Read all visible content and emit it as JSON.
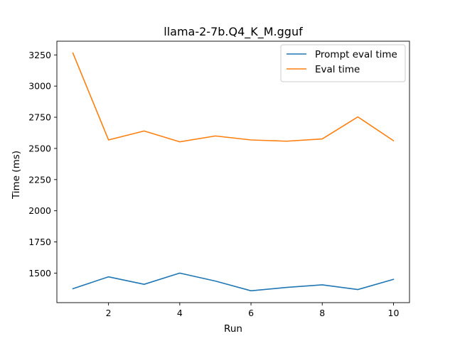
{
  "chart_data": {
    "type": "line",
    "title": "llama-2-7b.Q4_K_M.gguf",
    "xlabel": "Run",
    "ylabel": "Time (ms)",
    "x": [
      1,
      2,
      3,
      4,
      5,
      6,
      7,
      8,
      9,
      10
    ],
    "series": [
      {
        "name": "Prompt eval time",
        "color": "#1f77b4",
        "values": [
          1375,
          1470,
          1410,
          1500,
          1436,
          1358,
          1385,
          1406,
          1368,
          1450
        ]
      },
      {
        "name": "Eval time",
        "color": "#ff7f0e",
        "values": [
          3265,
          2568,
          2640,
          2553,
          2600,
          2568,
          2558,
          2576,
          2753,
          2562
        ]
      }
    ],
    "xlim": [
      0.55,
      10.45
    ],
    "ylim": [
      1263,
      3360
    ],
    "xticks": [
      2,
      4,
      6,
      8,
      10
    ],
    "yticks": [
      1500,
      1750,
      2000,
      2250,
      2500,
      2750,
      3000,
      3250
    ],
    "grid": false,
    "legend_position": "top-right"
  }
}
